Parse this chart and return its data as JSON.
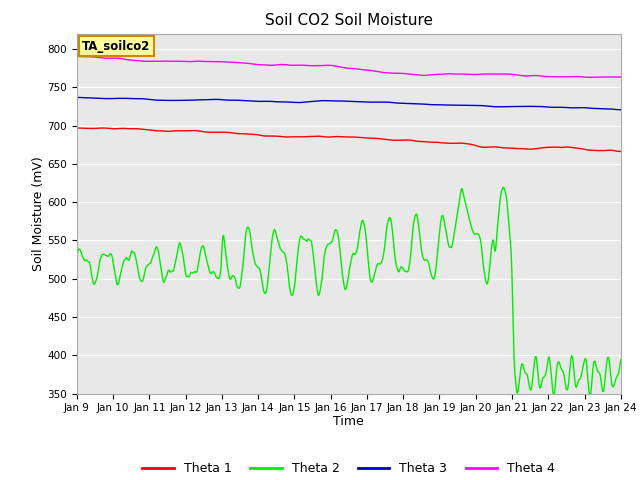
{
  "title": "Soil CO2 Soil Moisture",
  "xlabel": "Time",
  "ylabel": "Soil Moisture (mV)",
  "ylim": [
    350,
    820
  ],
  "xlim": [
    0,
    15
  ],
  "x_tick_labels": [
    "Jan 9",
    "Jan 10",
    "Jan 11",
    "Jan 12",
    "Jan 13",
    "Jan 14",
    "Jan 15",
    "Jan 16",
    "Jan 17",
    "Jan 18",
    "Jan 19",
    "Jan 20",
    "Jan 21",
    "Jan 22",
    "Jan 23",
    "Jan 24"
  ],
  "bg_color": "#e8e8e8",
  "fig_bg_color": "#ffffff",
  "grid_color": "#ffffff",
  "legend_labels": [
    "Theta 1",
    "Theta 2",
    "Theta 3",
    "Theta 4"
  ],
  "legend_colors": [
    "#ff0000",
    "#00ee00",
    "#0000cc",
    "#ff00ff"
  ],
  "annotation_text": "TA_soilco2",
  "annotation_bg": "#ffffa0",
  "annotation_border": "#cc8800",
  "title_fontsize": 11,
  "axis_label_fontsize": 9,
  "tick_fontsize": 7.5
}
